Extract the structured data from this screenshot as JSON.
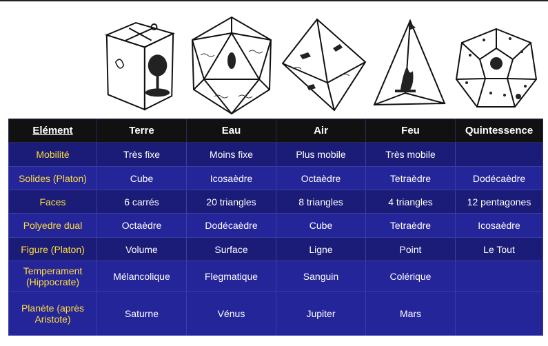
{
  "header": {
    "col0": "Elément",
    "col1": "Terre",
    "col2": "Eau",
    "col3": "Air",
    "col4": "Feu",
    "col5": "Quintessence"
  },
  "rows": [
    {
      "label": "Mobilité",
      "cells": [
        "Très fixe",
        "Moins fixe",
        "Plus mobile",
        "Très mobile",
        ""
      ]
    },
    {
      "label": "Solides (Platon)",
      "cells": [
        "Cube",
        "Icosaèdre",
        "Octaèdre",
        "Tetraèdre",
        "Dodécaèdre"
      ]
    },
    {
      "label": "Faces",
      "cells": [
        "6 carrés",
        "20 triangles",
        "8  triangles",
        "4  triangles",
        "12 pentagones"
      ]
    },
    {
      "label": "Polyedre dual",
      "cells": [
        "Octaèdre",
        "Dodécaèdre",
        "Cube",
        "Tetraèdre",
        "Icosaèdre"
      ]
    },
    {
      "label": "Figure (Platon)",
      "cells": [
        "Volume",
        "Surface",
        "Ligne",
        "Point",
        "Le Tout"
      ]
    },
    {
      "label": "Temperament (Hippocrate)",
      "cells": [
        "Mélancolique",
        "Flegmatique",
        "Sanguin",
        "Colérique",
        ""
      ]
    },
    {
      "label": "Planète (après Aristote)",
      "cells": [
        "Saturne",
        "Vénus",
        "Jupiter",
        "Mars",
        ""
      ]
    }
  ],
  "colors": {
    "header_bg": "#111111",
    "row_dark": "#1b1b78",
    "row_light": "#25259a",
    "label_text": "#ffde3a"
  },
  "illustrations": [
    "cube-earth-woodcut",
    "icosahedron-water-woodcut",
    "octahedron-air-woodcut",
    "tetrahedron-fire-woodcut",
    "dodecahedron-heavens-woodcut"
  ]
}
